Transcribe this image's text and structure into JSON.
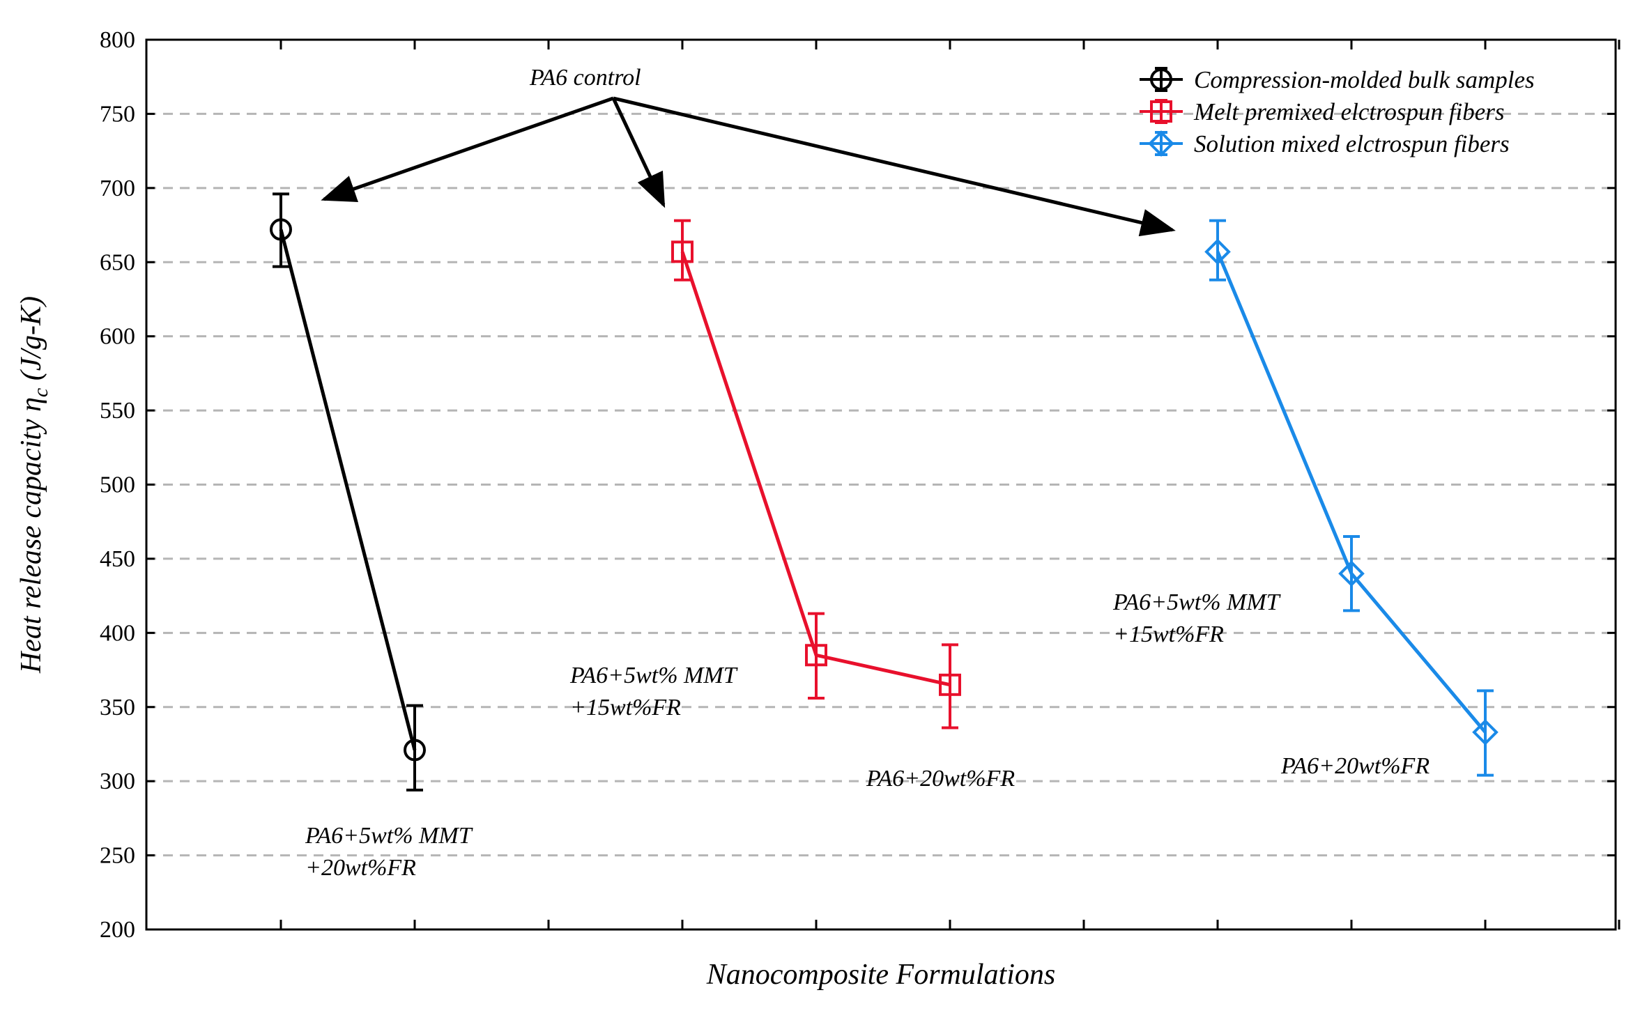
{
  "chart_data": {
    "type": "line",
    "title": "",
    "xlabel": "Nanocomposite Formulations",
    "ylabel": "Heat release capacity η",
    "ylabel_sub": "c",
    "ylabel_unit": " (J/g-K)",
    "ylim": [
      200,
      800
    ],
    "yticks": [
      200,
      250,
      300,
      350,
      400,
      450,
      500,
      550,
      600,
      650,
      700,
      750,
      800
    ],
    "x_positions": [
      1,
      2,
      3,
      4,
      5,
      6,
      7,
      8,
      9,
      10,
      11
    ],
    "grid": "horizontal dashed",
    "legend_position": "top-right",
    "series": [
      {
        "name": "Compression-molded bulk samples",
        "color": "#000000",
        "marker": "circle",
        "x": [
          1,
          2
        ],
        "values": [
          672,
          321
        ],
        "err_lo": [
          647,
          294
        ],
        "err_hi": [
          696,
          351
        ]
      },
      {
        "name": "Melt premixed elctrospun fibers",
        "color": "#e8102c",
        "marker": "square",
        "x": [
          4,
          5,
          6
        ],
        "values": [
          657,
          385,
          365
        ],
        "err_lo": [
          638,
          356,
          336
        ],
        "err_hi": [
          678,
          413,
          392
        ]
      },
      {
        "name": "Solution mixed elctrospun fibers",
        "color": "#1a8ae8",
        "marker": "diamond",
        "x": [
          8,
          9,
          10
        ],
        "values": [
          657,
          440,
          333
        ],
        "err_lo": [
          638,
          415,
          304
        ],
        "err_hi": [
          678,
          465,
          361
        ]
      }
    ],
    "annotations": [
      {
        "id": "pa6",
        "lines": [
          "PA6 control"
        ]
      },
      {
        "id": "black-low",
        "lines": [
          "PA6+5wt% MMT",
          "+20wt%FR"
        ]
      },
      {
        "id": "red-mid",
        "lines": [
          "PA6+5wt% MMT",
          "+15wt%FR"
        ]
      },
      {
        "id": "red-low",
        "lines": [
          "PA6+20wt%FR"
        ]
      },
      {
        "id": "blue-mid",
        "lines": [
          "PA6+5wt% MMT",
          "+15wt%FR"
        ]
      },
      {
        "id": "blue-low",
        "lines": [
          "PA6+20wt%FR"
        ]
      }
    ]
  }
}
